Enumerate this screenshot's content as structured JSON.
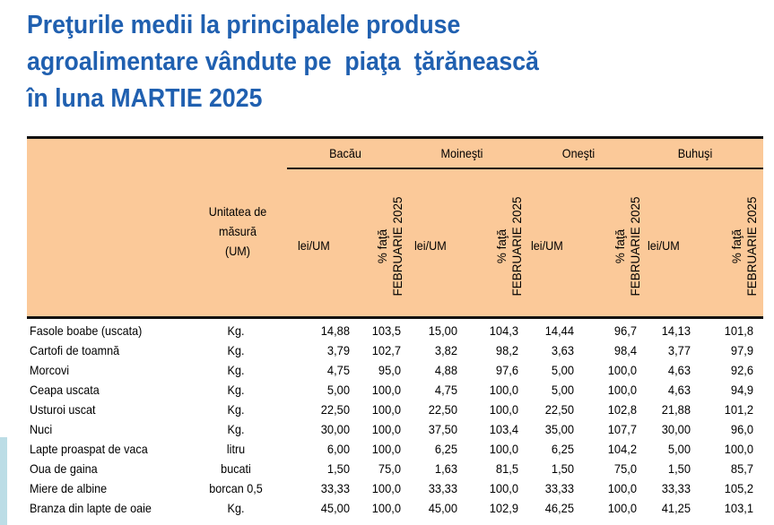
{
  "title": [
    "Preţurile medii la principalele produse",
    "agroalimentare vândute pe  piaţa  ţărănească",
    "în luna MARTIE 2025"
  ],
  "header": {
    "um": [
      "Unitatea de",
      "măsură",
      "(UM)"
    ],
    "cities": [
      "Bacău",
      "Moineşti",
      "Oneşti",
      "Buhuşi"
    ],
    "price": "lei/UM",
    "pct": [
      "% faţă",
      "FEBRUARIE 2025"
    ]
  },
  "rows": [
    [
      "Fasole boabe (uscata)",
      "Kg.",
      "14,88",
      "103,5",
      "15,00",
      "104,3",
      "14,44",
      "96,7",
      "14,13",
      "101,8"
    ],
    [
      "Cartofi de toamnă",
      "Kg.",
      "3,79",
      "102,7",
      "3,82",
      "98,2",
      "3,63",
      "98,4",
      "3,77",
      "97,9"
    ],
    [
      "Morcovi",
      "Kg.",
      "4,75",
      "95,0",
      "4,88",
      "97,6",
      "5,00",
      "100,0",
      "4,63",
      "92,6"
    ],
    [
      "Ceapa uscata",
      "Kg.",
      "5,00",
      "100,0",
      "4,75",
      "100,0",
      "5,00",
      "100,0",
      "4,63",
      "94,9"
    ],
    [
      "Usturoi uscat",
      "Kg.",
      "22,50",
      "100,0",
      "22,50",
      "100,0",
      "22,50",
      "102,8",
      "21,88",
      "101,2"
    ],
    [
      "Nuci",
      "Kg.",
      "30,00",
      "100,0",
      "37,50",
      "103,4",
      "35,00",
      "107,7",
      "30,00",
      "96,0"
    ],
    [
      "Lapte proaspat de vaca",
      "litru",
      "6,00",
      "100,0",
      "6,25",
      "100,0",
      "6,25",
      "104,2",
      "5,00",
      "100,0"
    ],
    [
      "Oua de gaina",
      "bucati",
      "1,50",
      "75,0",
      "1,63",
      "81,5",
      "1,50",
      "75,0",
      "1,50",
      "85,7"
    ],
    [
      "Miere de albine",
      "borcan 0,5",
      "33,33",
      "100,0",
      "33,33",
      "100,0",
      "33,33",
      "100,0",
      "33,33",
      "105,2"
    ],
    [
      "Branza din lapte de oaie",
      "Kg.",
      "45,00",
      "100,0",
      "45,00",
      "102,9",
      "46,25",
      "100,0",
      "41,25",
      "103,1"
    ]
  ],
  "colors": {
    "title": "#2060b0",
    "header_bg": "#fbc999"
  }
}
